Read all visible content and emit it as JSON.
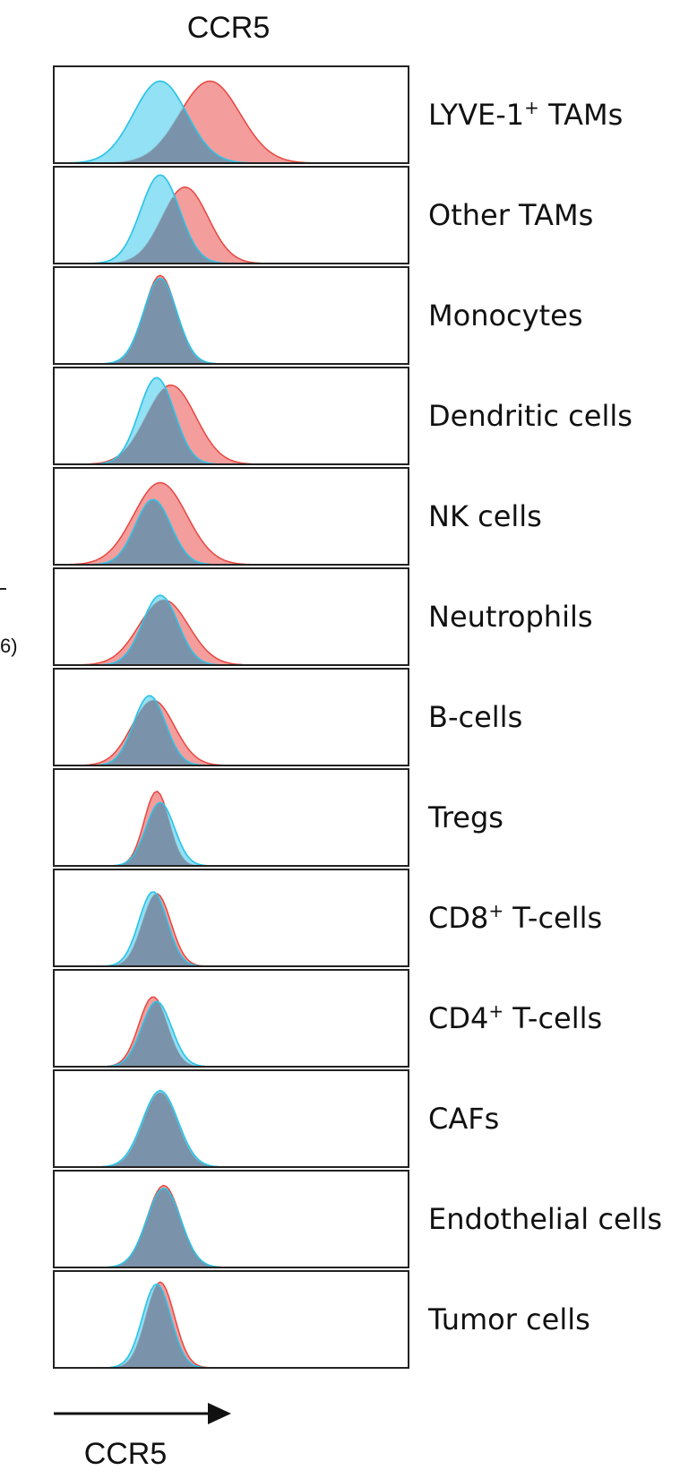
{
  "chart_data": {
    "type": "histogram-stack",
    "title": "CCR5",
    "xlabel": "CCR5",
    "side_fragment": "6)",
    "colors": {
      "group_a": "#e8473f",
      "group_a_fill": "#f28c8c",
      "group_b": "#2cc4e8",
      "group_b_fill": "#7fdcf2",
      "overlap": "#7a8fa6"
    },
    "panels": [
      {
        "label": "LYVE-1",
        "sup": "+",
        "suffix": " TAMs",
        "a": {
          "mean": 0.44,
          "sd": 0.085,
          "peak": 0.88
        },
        "b": {
          "mean": 0.3,
          "sd": 0.075,
          "peak": 0.88
        }
      },
      {
        "label": "Other TAMs",
        "sup": "",
        "suffix": "",
        "a": {
          "mean": 0.37,
          "sd": 0.065,
          "peak": 0.82
        },
        "b": {
          "mean": 0.3,
          "sd": 0.055,
          "peak": 0.95
        }
      },
      {
        "label": "Monocytes",
        "sup": "",
        "suffix": "",
        "a": {
          "mean": 0.3,
          "sd": 0.045,
          "peak": 0.95
        },
        "b": {
          "mean": 0.3,
          "sd": 0.047,
          "peak": 0.92
        }
      },
      {
        "label": "Dendritic cells",
        "sup": "",
        "suffix": "",
        "a": {
          "mean": 0.33,
          "sd": 0.07,
          "peak": 0.85
        },
        "b": {
          "mean": 0.29,
          "sd": 0.05,
          "peak": 0.93
        }
      },
      {
        "label": "NK cells",
        "sup": "",
        "suffix": "",
        "a": {
          "mean": 0.3,
          "sd": 0.075,
          "peak": 0.88
        },
        "b": {
          "mean": 0.28,
          "sd": 0.05,
          "peak": 0.7
        }
      },
      {
        "label": "Neutrophils",
        "sup": "",
        "suffix": "",
        "a": {
          "mean": 0.31,
          "sd": 0.07,
          "peak": 0.7
        },
        "b": {
          "mean": 0.3,
          "sd": 0.05,
          "peak": 0.75
        }
      },
      {
        "label": "B-cells",
        "sup": "",
        "suffix": "",
        "a": {
          "mean": 0.28,
          "sd": 0.06,
          "peak": 0.7
        },
        "b": {
          "mean": 0.27,
          "sd": 0.045,
          "peak": 0.75
        }
      },
      {
        "label": "Tregs",
        "sup": "",
        "suffix": "",
        "a": {
          "mean": 0.29,
          "sd": 0.035,
          "peak": 0.8
        },
        "b": {
          "mean": 0.3,
          "sd": 0.04,
          "peak": 0.68
        }
      },
      {
        "label": "CD8",
        "sup": "+",
        "suffix": " T-cells",
        "a": {
          "mean": 0.29,
          "sd": 0.04,
          "peak": 0.78
        },
        "b": {
          "mean": 0.28,
          "sd": 0.04,
          "peak": 0.8
        }
      },
      {
        "label": "CD4",
        "sup": "+",
        "suffix": " T-cells",
        "a": {
          "mean": 0.28,
          "sd": 0.04,
          "peak": 0.75
        },
        "b": {
          "mean": 0.29,
          "sd": 0.042,
          "peak": 0.7
        }
      },
      {
        "label": "CAFs",
        "sup": "",
        "suffix": "",
        "a": {
          "mean": 0.3,
          "sd": 0.048,
          "peak": 0.8
        },
        "b": {
          "mean": 0.3,
          "sd": 0.05,
          "peak": 0.82
        }
      },
      {
        "label": "Endothelial cells",
        "sup": "",
        "suffix": "",
        "a": {
          "mean": 0.31,
          "sd": 0.047,
          "peak": 0.88
        },
        "b": {
          "mean": 0.31,
          "sd": 0.048,
          "peak": 0.85
        }
      },
      {
        "label": "Tumor cells",
        "sup": "",
        "suffix": "",
        "a": {
          "mean": 0.3,
          "sd": 0.04,
          "peak": 0.92
        },
        "b": {
          "mean": 0.29,
          "sd": 0.04,
          "peak": 0.9
        }
      }
    ]
  }
}
